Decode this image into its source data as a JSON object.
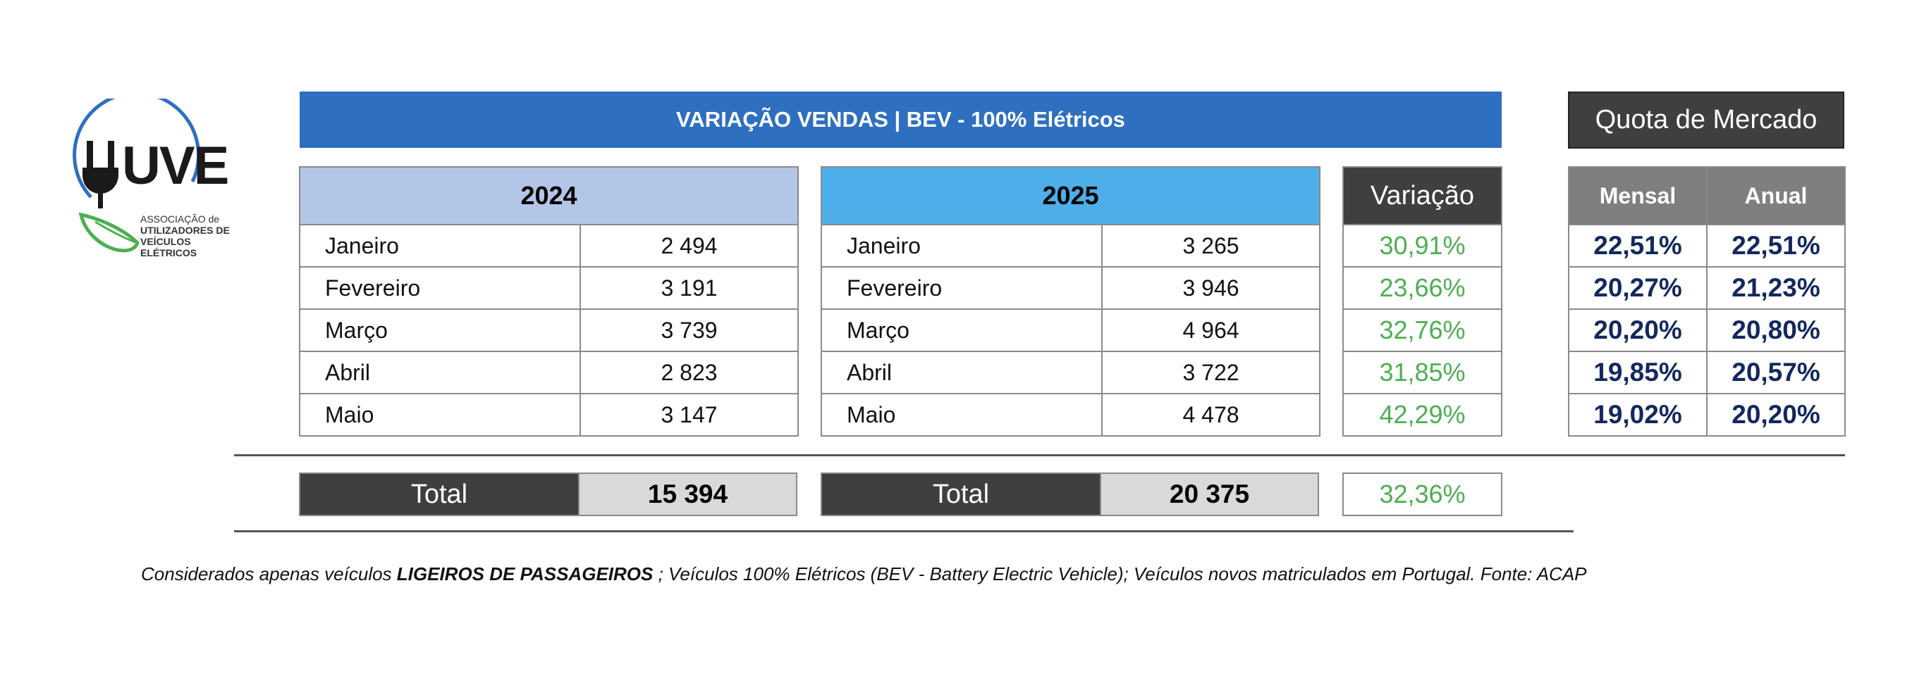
{
  "logo": {
    "mark": "UVE",
    "line1": "ASSOCIAÇÃO de",
    "line2": "UTILIZADORES DE",
    "line3": "VEÍCULOS ELÉTRICOS",
    "colors": {
      "ring": "#2e6fc0",
      "leaf": "#4caf50",
      "text": "#1a1a1a"
    }
  },
  "title": "VARIAÇÃO VENDAS | BEV - 100% Elétricos",
  "quota_title": "Quota de Mercado",
  "table_2024": {
    "header": "2024",
    "rows": [
      {
        "month": "Janeiro",
        "value": "2 494"
      },
      {
        "month": "Fevereiro",
        "value": "3 191"
      },
      {
        "month": "Março",
        "value": "3 739"
      },
      {
        "month": "Abril",
        "value": "2 823"
      },
      {
        "month": "Maio",
        "value": "3 147"
      }
    ],
    "total_label": "Total",
    "total_value": "15 394"
  },
  "table_2025": {
    "header": "2025",
    "rows": [
      {
        "month": "Janeiro",
        "value": "3 265"
      },
      {
        "month": "Fevereiro",
        "value": "3 946"
      },
      {
        "month": "Março",
        "value": "4 964"
      },
      {
        "month": "Abril",
        "value": "3 722"
      },
      {
        "month": "Maio",
        "value": "4 478"
      }
    ],
    "total_label": "Total",
    "total_value": "20 375"
  },
  "variation": {
    "header": "Variação",
    "values": [
      "30,91%",
      "23,66%",
      "32,76%",
      "31,85%",
      "42,29%"
    ],
    "total": "32,36%"
  },
  "quota": {
    "headers": [
      "Mensal",
      "Anual"
    ],
    "rows": [
      {
        "mensal": "22,51%",
        "anual": "22,51%"
      },
      {
        "mensal": "20,27%",
        "anual": "21,23%"
      },
      {
        "mensal": "20,20%",
        "anual": "20,80%"
      },
      {
        "mensal": "19,85%",
        "anual": "20,57%"
      },
      {
        "mensal": "19,02%",
        "anual": "20,20%"
      }
    ]
  },
  "footnote": {
    "prefix": "Considerados apenas veículos ",
    "bold": "LIGEIROS DE PASSAGEIROS",
    "suffix": " ; Veículos 100% Elétricos (BEV - Battery Electric Vehicle); Veículos novos matriculados em Portugal. Fonte: ACAP"
  },
  "colors": {
    "title_bar": "#2e6fc0",
    "header_2024": "#b4c6e7",
    "header_2025": "#4eaee9",
    "dark_header": "#3f3f3f",
    "quota_header": "#7f7f7f",
    "variation_text": "#4caf50",
    "quota_text": "#13285e",
    "total_value_bg": "#d9d9d9"
  }
}
